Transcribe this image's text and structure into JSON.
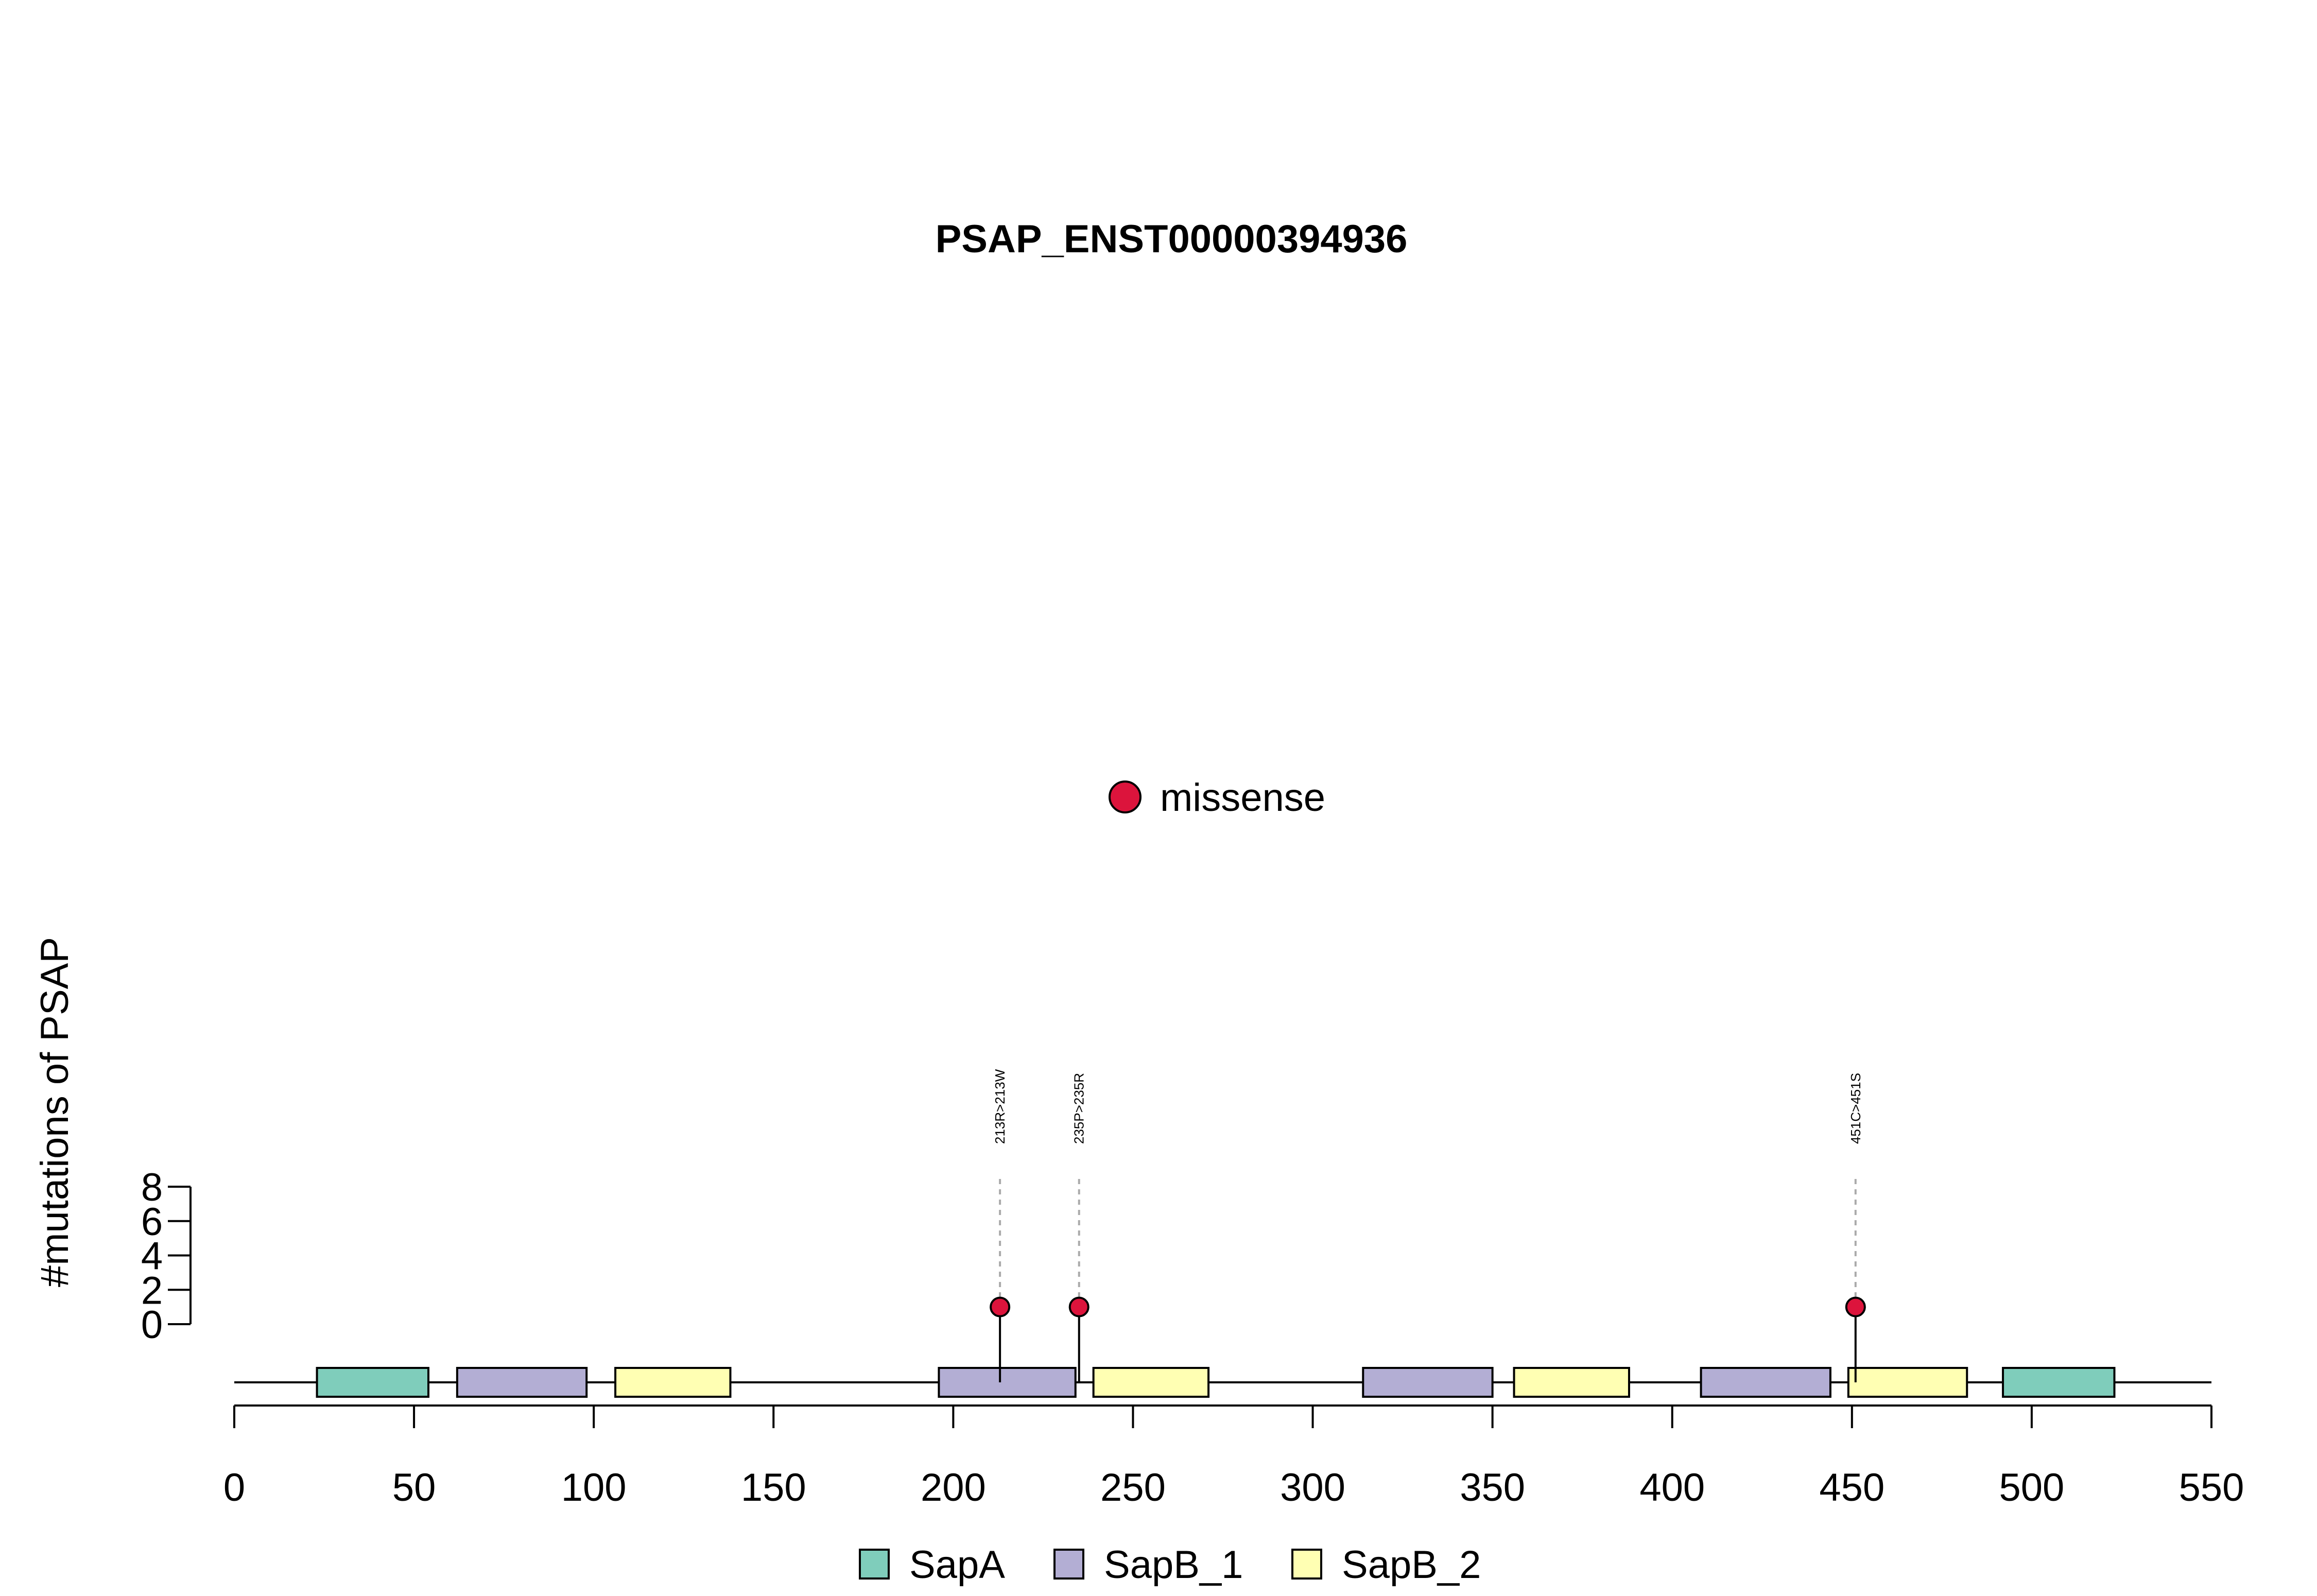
{
  "chart_data": {
    "type": "lollipop",
    "title": "PSAP_ENST00000394936",
    "xlabel": "",
    "ylabel": "#mutations of PSAP",
    "xlim": [
      0,
      550
    ],
    "x_ticks": [
      0,
      50,
      100,
      150,
      200,
      250,
      300,
      350,
      400,
      450,
      500,
      550
    ],
    "ylim": [
      0,
      8
    ],
    "y_ticks": [
      0,
      2,
      4,
      6,
      8
    ],
    "protein_length": 550,
    "mutations": [
      {
        "position": 213,
        "count": 1,
        "label": "213R>213W",
        "type": "missense"
      },
      {
        "position": 235,
        "count": 1,
        "label": "235P>235R",
        "type": "missense"
      },
      {
        "position": 451,
        "count": 1,
        "label": "451C>451S",
        "type": "missense"
      }
    ],
    "domains": [
      {
        "name": "SapA",
        "start": 23,
        "end": 54
      },
      {
        "name": "SapB_1",
        "start": 62,
        "end": 98
      },
      {
        "name": "SapB_2",
        "start": 106,
        "end": 138
      },
      {
        "name": "SapB_1",
        "start": 196,
        "end": 234
      },
      {
        "name": "SapB_2",
        "start": 239,
        "end": 271
      },
      {
        "name": "SapB_1",
        "start": 314,
        "end": 350
      },
      {
        "name": "SapB_2",
        "start": 356,
        "end": 388
      },
      {
        "name": "SapB_1",
        "start": 408,
        "end": 444
      },
      {
        "name": "SapB_2",
        "start": 449,
        "end": 482
      },
      {
        "name": "SapA",
        "start": 492,
        "end": 523
      }
    ],
    "mutation_legend": [
      {
        "label": "missense",
        "color": "#dc143c"
      }
    ],
    "domain_legend": [
      {
        "label": "SapA",
        "color": "#7fcdbb"
      },
      {
        "label": "SapB_1",
        "color": "#b3aed4"
      },
      {
        "label": "SapB_2",
        "color": "#ffffb3"
      }
    ],
    "grid": false,
    "legend_placement": "bottom-center"
  }
}
